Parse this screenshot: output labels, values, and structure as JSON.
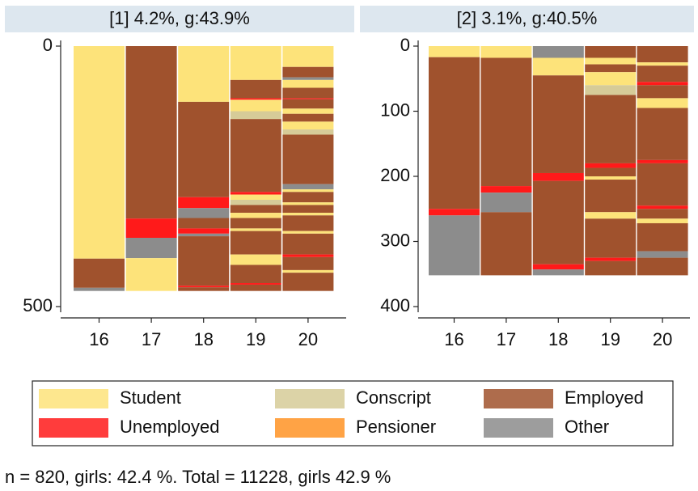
{
  "chart_data": [
    {
      "type": "sequence_index",
      "title": "[1] 4.2%, g:43.9%",
      "categories": [
        "16",
        "17",
        "18",
        "19",
        "20"
      ],
      "ylim": [
        0,
        500
      ],
      "y_reversed": true,
      "yticks": [
        0,
        500
      ],
      "stacks": [
        [
          {
            "state": 0,
            "value": 408
          },
          {
            "state": 2,
            "value": 56
          },
          {
            "state": 5,
            "value": 6
          }
        ],
        [
          {
            "state": 2,
            "value": 331
          },
          {
            "state": 3,
            "value": 37
          },
          {
            "state": 5,
            "value": 39
          },
          {
            "state": 0,
            "value": 63
          }
        ],
        [
          {
            "state": 0,
            "value": 107
          },
          {
            "state": 2,
            "value": 183
          },
          {
            "state": 3,
            "value": 21
          },
          {
            "state": 5,
            "value": 19
          },
          {
            "state": 2,
            "value": 20
          },
          {
            "state": 3,
            "value": 10
          },
          {
            "state": 5,
            "value": 5
          },
          {
            "state": 2,
            "value": 95
          },
          {
            "state": 3,
            "value": 3
          },
          {
            "state": 2,
            "value": 7
          }
        ],
        [
          {
            "state": 0,
            "value": 65
          },
          {
            "state": 2,
            "value": 35
          },
          {
            "state": 3,
            "value": 3
          },
          {
            "state": 0,
            "value": 22
          },
          {
            "state": 1,
            "value": 15
          },
          {
            "state": 2,
            "value": 140
          },
          {
            "state": 3,
            "value": 5
          },
          {
            "state": 0,
            "value": 10
          },
          {
            "state": 1,
            "value": 10
          },
          {
            "state": 2,
            "value": 15
          },
          {
            "state": 0,
            "value": 10
          },
          {
            "state": 2,
            "value": 20
          },
          {
            "state": 0,
            "value": 5
          },
          {
            "state": 2,
            "value": 45
          },
          {
            "state": 0,
            "value": 20
          },
          {
            "state": 2,
            "value": 35
          },
          {
            "state": 3,
            "value": 3
          },
          {
            "state": 2,
            "value": 12
          }
        ],
        [
          {
            "state": 0,
            "value": 40
          },
          {
            "state": 2,
            "value": 20
          },
          {
            "state": 5,
            "value": 5
          },
          {
            "state": 0,
            "value": 15
          },
          {
            "state": 2,
            "value": 20
          },
          {
            "state": 3,
            "value": 2
          },
          {
            "state": 2,
            "value": 18
          },
          {
            "state": 0,
            "value": 10
          },
          {
            "state": 2,
            "value": 15
          },
          {
            "state": 0,
            "value": 15
          },
          {
            "state": 1,
            "value": 10
          },
          {
            "state": 2,
            "value": 95
          },
          {
            "state": 5,
            "value": 10
          },
          {
            "state": 0,
            "value": 5
          },
          {
            "state": 2,
            "value": 20
          },
          {
            "state": 0,
            "value": 5
          },
          {
            "state": 2,
            "value": 15
          },
          {
            "state": 0,
            "value": 5
          },
          {
            "state": 2,
            "value": 30
          },
          {
            "state": 0,
            "value": 5
          },
          {
            "state": 2,
            "value": 40
          },
          {
            "state": 3,
            "value": 5
          },
          {
            "state": 2,
            "value": 25
          },
          {
            "state": 0,
            "value": 5
          },
          {
            "state": 2,
            "value": 35
          }
        ]
      ]
    },
    {
      "type": "sequence_index",
      "title": "[2] 3.1%, g:40.5%",
      "categories": [
        "16",
        "17",
        "18",
        "19",
        "20"
      ],
      "ylim": [
        0,
        400
      ],
      "y_reversed": true,
      "yticks": [
        0,
        100,
        200,
        300,
        400
      ],
      "stacks": [
        [
          {
            "state": 0,
            "value": 17
          },
          {
            "state": 2,
            "value": 233
          },
          {
            "state": 3,
            "value": 10
          },
          {
            "state": 5,
            "value": 92
          }
        ],
        [
          {
            "state": 0,
            "value": 18
          },
          {
            "state": 2,
            "value": 197
          },
          {
            "state": 3,
            "value": 10
          },
          {
            "state": 5,
            "value": 30
          },
          {
            "state": 2,
            "value": 97
          }
        ],
        [
          {
            "state": 5,
            "value": 18
          },
          {
            "state": 0,
            "value": 27
          },
          {
            "state": 2,
            "value": 150
          },
          {
            "state": 3,
            "value": 12
          },
          {
            "state": 2,
            "value": 128
          },
          {
            "state": 3,
            "value": 8
          },
          {
            "state": 5,
            "value": 9
          }
        ],
        [
          {
            "state": 2,
            "value": 18
          },
          {
            "state": 0,
            "value": 10
          },
          {
            "state": 2,
            "value": 12
          },
          {
            "state": 0,
            "value": 20
          },
          {
            "state": 1,
            "value": 15
          },
          {
            "state": 2,
            "value": 105
          },
          {
            "state": 3,
            "value": 7
          },
          {
            "state": 2,
            "value": 13
          },
          {
            "state": 0,
            "value": 5
          },
          {
            "state": 2,
            "value": 50
          },
          {
            "state": 0,
            "value": 10
          },
          {
            "state": 2,
            "value": 60
          },
          {
            "state": 3,
            "value": 5
          },
          {
            "state": 2,
            "value": 22
          }
        ],
        [
          {
            "state": 2,
            "value": 25
          },
          {
            "state": 0,
            "value": 5
          },
          {
            "state": 2,
            "value": 25
          },
          {
            "state": 3,
            "value": 5
          },
          {
            "state": 2,
            "value": 20
          },
          {
            "state": 0,
            "value": 15
          },
          {
            "state": 2,
            "value": 80
          },
          {
            "state": 3,
            "value": 5
          },
          {
            "state": 2,
            "value": 65
          },
          {
            "state": 3,
            "value": 5
          },
          {
            "state": 2,
            "value": 15
          },
          {
            "state": 0,
            "value": 7
          },
          {
            "state": 2,
            "value": 43
          },
          {
            "state": 5,
            "value": 10
          },
          {
            "state": 2,
            "value": 27
          }
        ]
      ]
    }
  ],
  "legend": [
    {
      "name": "Student",
      "color": "#fde37a"
    },
    {
      "name": "Conscript",
      "color": "#d6cb98"
    },
    {
      "name": "Employed",
      "color": "#a0522d"
    },
    {
      "name": "Unemployed",
      "color": "#ff1a1a"
    },
    {
      "name": "Pensioner",
      "color": "#ff9324"
    },
    {
      "name": "Other",
      "color": "#8c8c8c"
    }
  ],
  "note": "n = 820, girls: 42.4 %. Total = 11228, girls 42.9 %"
}
